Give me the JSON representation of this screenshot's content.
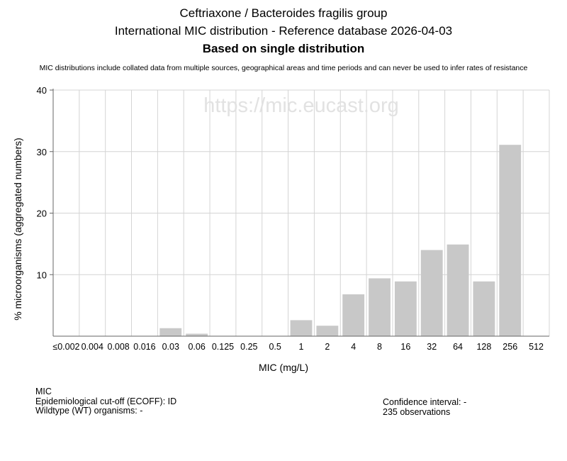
{
  "header": {
    "title": "Ceftriaxone / Bacteroides fragilis group",
    "subtitle": "International MIC distribution - Reference database 2026-04-03",
    "basis": "Based on single distribution",
    "disclaimer": "MIC distributions include collated data from multiple sources, geographical areas and time periods and can never be used to infer rates of resistance"
  },
  "watermark": "https://mic.eucast.org",
  "chart_data": {
    "type": "bar",
    "xlabel": "MIC (mg/L)",
    "ylabel": "% microorganisms (aggregated numbers)",
    "categories": [
      "≤0.002",
      "0.004",
      "0.008",
      "0.016",
      "0.03",
      "0.06",
      "0.125",
      "0.25",
      "0.5",
      "1",
      "2",
      "4",
      "8",
      "16",
      "32",
      "64",
      "128",
      "256",
      "512"
    ],
    "values": [
      0,
      0,
      0,
      0,
      1.3,
      0.4,
      0,
      0,
      0,
      2.6,
      1.7,
      6.8,
      9.4,
      8.9,
      14.0,
      14.9,
      8.9,
      31.1,
      0
    ],
    "yticks": [
      10,
      20,
      30,
      40
    ],
    "ylim": [
      0,
      40
    ],
    "grid": true,
    "bar_color": "#c8c8c8"
  },
  "footer": {
    "mic_label": "MIC",
    "ecoff": "Epidemiological cut-off (ECOFF): ID",
    "wildtype": "Wildtype (WT) organisms:  -",
    "confidence": "Confidence interval: -",
    "observations": "235 observations"
  }
}
